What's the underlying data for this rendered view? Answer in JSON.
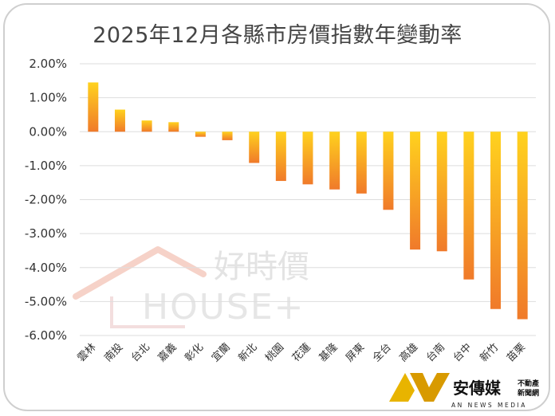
{
  "chart_data": {
    "type": "bar",
    "title": "2025年12月各縣市房價指數年變動率",
    "categories": [
      "雲林",
      "南投",
      "台北",
      "嘉義",
      "彰化",
      "宜蘭",
      "新北",
      "桃園",
      "花蓮",
      "基隆",
      "屏東",
      "全台",
      "高雄",
      "台南",
      "台中",
      "新竹",
      "苗栗"
    ],
    "values": [
      1.45,
      0.65,
      0.33,
      0.28,
      -0.15,
      -0.25,
      -0.92,
      -1.45,
      -1.55,
      -1.7,
      -1.82,
      -2.3,
      -3.47,
      -3.52,
      -4.35,
      -5.22,
      -5.52
    ],
    "ylim": [
      -6,
      2
    ],
    "yticks": [
      "2.00%",
      "1.00%",
      "0.00%",
      "-1.00%",
      "-2.00%",
      "-3.00%",
      "-4.00%",
      "-5.00%",
      "-6.00%"
    ],
    "grid": true,
    "bar_gradient": {
      "start": "#ffd21e",
      "end": "#f07a2a"
    }
  },
  "watermark": {
    "brand_cn": "好時價",
    "brand_en": "HOUSE+"
  },
  "logo": {
    "name_cn": "安傳媒",
    "tag_line1": "不動產",
    "tag_line2": "新聞網",
    "name_en": "AN NEWS MEDIA"
  }
}
